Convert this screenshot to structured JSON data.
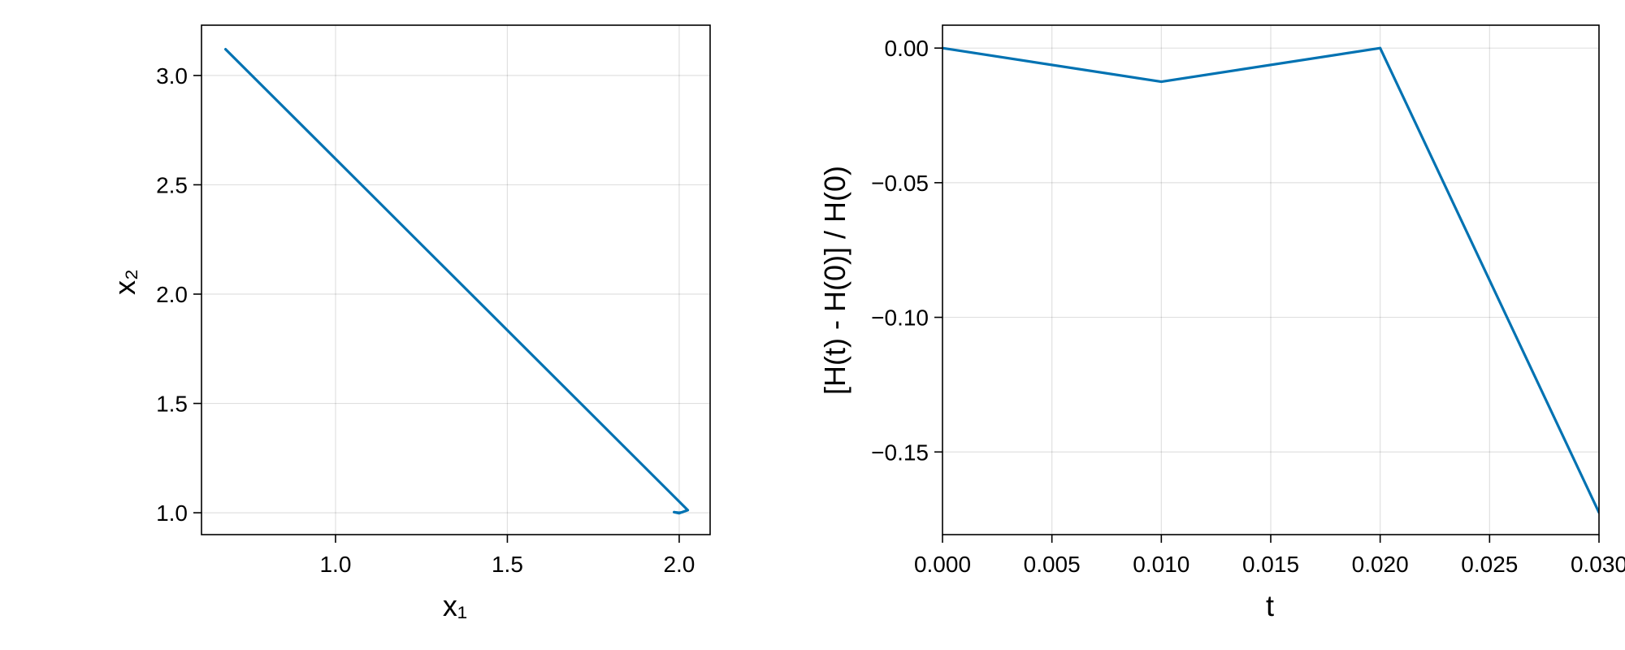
{
  "colors": {
    "series": "#0072b2",
    "frame": "#000000",
    "background": "#ffffff"
  },
  "chart_data": [
    {
      "type": "line",
      "title": "",
      "xlabel": "x₁",
      "ylabel": "x₂",
      "xlim": [
        0.61,
        2.09
      ],
      "ylim": [
        0.9,
        3.23
      ],
      "xticks": [
        1.0,
        1.5,
        2.0
      ],
      "xtick_labels": [
        "1.0",
        "1.5",
        "2.0"
      ],
      "yticks": [
        1.0,
        1.5,
        2.0,
        2.5,
        3.0
      ],
      "ytick_labels": [
        "1.0",
        "1.5",
        "2.0",
        "2.5",
        "3.0"
      ],
      "grid": true,
      "legend": "none",
      "series": [
        {
          "x": [
            0.68,
            2.025,
            2.0,
            1.985,
            2.0,
            2.01
          ],
          "y": [
            3.12,
            1.012,
            0.998,
            1.003,
            1.0,
            1.003
          ]
        }
      ]
    },
    {
      "type": "line",
      "title": "",
      "xlabel": "t",
      "ylabel": "[H(t) - H(0)] / H(0)",
      "xlim": [
        0.0,
        0.03
      ],
      "ylim": [
        -0.1807,
        0.0085
      ],
      "xticks": [
        0.0,
        0.005,
        0.01,
        0.015,
        0.02,
        0.025,
        0.03
      ],
      "xtick_labels": [
        "0.000",
        "0.005",
        "0.010",
        "0.015",
        "0.020",
        "0.025",
        "0.030"
      ],
      "yticks": [
        0.0,
        -0.05,
        -0.1,
        -0.15
      ],
      "ytick_labels": [
        "0.00",
        "−0.05",
        "−0.10",
        "−0.15"
      ],
      "grid": true,
      "legend": "none",
      "series": [
        {
          "x": [
            0.0,
            0.01,
            0.02,
            0.03
          ],
          "y": [
            0.0,
            -0.0125,
            0.0,
            -0.1725
          ]
        }
      ]
    }
  ]
}
